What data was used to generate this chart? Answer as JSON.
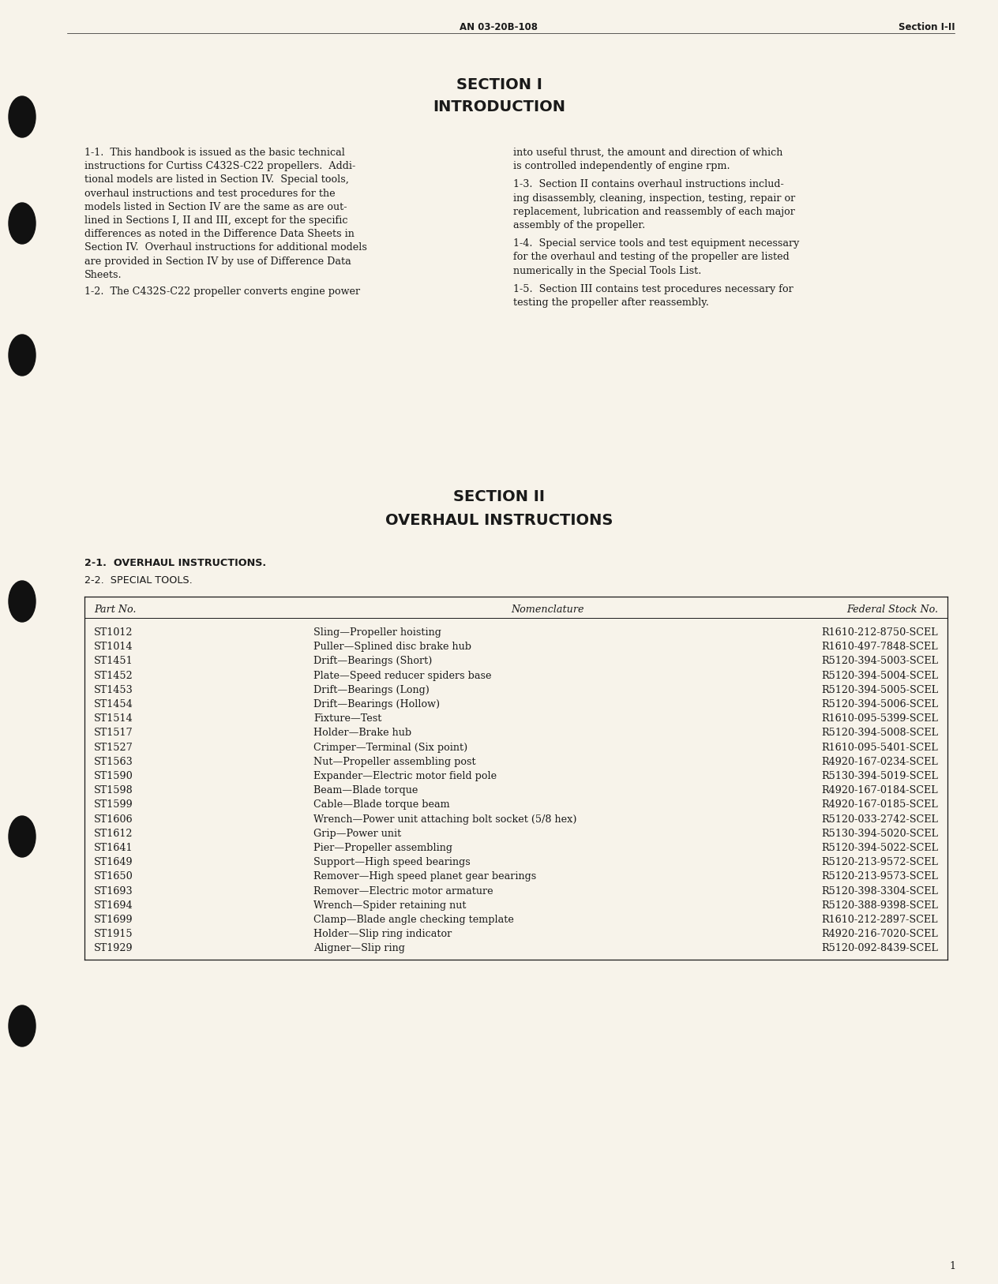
{
  "bg_color": "#f7f3ea",
  "text_color": "#1a1a1a",
  "header_left": "AN 03-20B-108",
  "header_right": "Section I-II",
  "section1_title1": "SECTION I",
  "section1_title2": "INTRODUCTION",
  "para_1_1_lines": [
    "1-1.  This handbook is issued as the basic technical",
    "instructions for Curtiss C432S-C22 propellers.  Addi-",
    "tional models are listed in Section IV.  Special tools,",
    "overhaul instructions and test procedures for the",
    "models listed in Section IV are the same as are out-",
    "lined in Sections I, II and III, except for the specific",
    "differences as noted in the Difference Data Sheets in",
    "Section IV.  Overhaul instructions for additional models",
    "are provided in Section IV by use of Difference Data",
    "Sheets."
  ],
  "para_1_2_lines": [
    "1-2.  The C432S-C22 propeller converts engine power"
  ],
  "para_r12_lines": [
    "into useful thrust, the amount and direction of which",
    "is controlled independently of engine rpm."
  ],
  "para_r13_lines": [
    "1-3.  Section II contains overhaul instructions includ-",
    "ing disassembly, cleaning, inspection, testing, repair or",
    "replacement, lubrication and reassembly of each major",
    "assembly of the propeller."
  ],
  "para_r14_lines": [
    "1-4.  Special service tools and test equipment necessary",
    "for the overhaul and testing of the propeller are listed",
    "numerically in the Special Tools List."
  ],
  "para_r15_lines": [
    "1-5.  Section III contains test procedures necessary for",
    "testing the propeller after reassembly."
  ],
  "section2_title1": "SECTION II",
  "section2_title2": "OVERHAUL INSTRUCTIONS",
  "sub2_1": "2-1.  OVERHAUL INSTRUCTIONS.",
  "sub2_2": "2-2.  SPECIAL TOOLS.",
  "table_headers": [
    "Part No.",
    "Nomenclature",
    "Federal Stock No."
  ],
  "table_rows": [
    [
      "ST1012",
      "Sling—Propeller hoisting",
      "R1610-212-8750-SCEL"
    ],
    [
      "ST1014",
      "Puller—Splined disc brake hub",
      "R1610-497-7848-SCEL"
    ],
    [
      "ST1451",
      "Drift—Bearings (Short)",
      "R5120-394-5003-SCEL"
    ],
    [
      "ST1452",
      "Plate—Speed reducer spiders base",
      "R5120-394-5004-SCEL"
    ],
    [
      "ST1453",
      "Drift—Bearings (Long)",
      "R5120-394-5005-SCEL"
    ],
    [
      "ST1454",
      "Drift—Bearings (Hollow)",
      "R5120-394-5006-SCEL"
    ],
    [
      "ST1514",
      "Fixture—Test",
      "R1610-095-5399-SCEL"
    ],
    [
      "ST1517",
      "Holder—Brake hub",
      "R5120-394-5008-SCEL"
    ],
    [
      "ST1527",
      "Crimper—Terminal (Six point)",
      "R1610-095-5401-SCEL"
    ],
    [
      "ST1563",
      "Nut—Propeller assembling post",
      "R4920-167-0234-SCEL"
    ],
    [
      "ST1590",
      "Expander—Electric motor field pole",
      "R5130-394-5019-SCEL"
    ],
    [
      "ST1598",
      "Beam—Blade torque",
      "R4920-167-0184-SCEL"
    ],
    [
      "ST1599",
      "Cable—Blade torque beam",
      "R4920-167-0185-SCEL"
    ],
    [
      "ST1606",
      "Wrench—Power unit attaching bolt socket (5/8 hex)",
      "R5120-033-2742-SCEL"
    ],
    [
      "ST1612",
      "Grip—Power unit",
      "R5130-394-5020-SCEL"
    ],
    [
      "ST1641",
      "Pier—Propeller assembling",
      "R5120-394-5022-SCEL"
    ],
    [
      "ST1649",
      "Support—High speed bearings",
      "R5120-213-9572-SCEL"
    ],
    [
      "ST1650",
      "Remover—High speed planet gear bearings",
      "R5120-213-9573-SCEL"
    ],
    [
      "ST1693",
      "Remover—Electric motor armature",
      "R5120-398-3304-SCEL"
    ],
    [
      "ST1694",
      "Wrench—Spider retaining nut",
      "R5120-388-9398-SCEL"
    ],
    [
      "ST1699",
      "Clamp—Blade angle checking template",
      "R1610-212-2897-SCEL"
    ],
    [
      "ST1915",
      "Holder—Slip ring indicator",
      "R4920-216-7020-SCEL"
    ],
    [
      "ST1929",
      "Aligner—Slip ring",
      "R5120-092-8439-SCEL"
    ]
  ],
  "page_number": "1",
  "hole_y_positions": [
    148,
    283,
    450,
    762,
    1060,
    1300
  ]
}
